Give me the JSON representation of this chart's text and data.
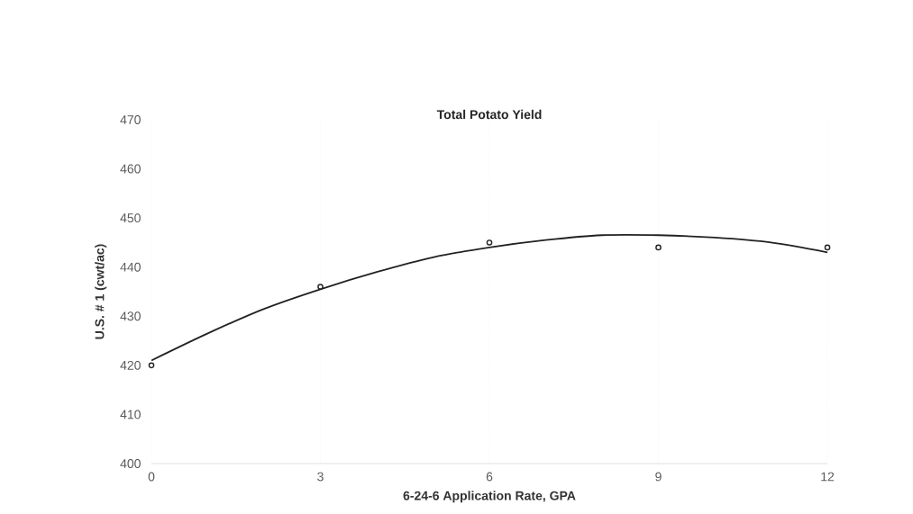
{
  "chart_data": {
    "type": "scatter",
    "title": "**Total Potato Yield**",
    "xlabel": "**6-24-6 Application Rate, GPA**",
    "ylabel": "**U.S. # 1 (cwt/ac)**",
    "x": [
      0,
      3,
      6,
      9,
      12
    ],
    "series": [
      {
        "color": "#222222",
        "marker": "circle",
        "values": [
          420,
          436,
          445,
          444,
          444
        ]
      },
      {
        "type": "line",
        "color": "#222222",
        "line_style": "solid",
        "x": [
          0,
          1,
          2,
          3,
          4,
          5,
          6,
          7,
          8,
          9,
          10,
          11,
          12
        ],
        "values": [
          421,
          426.5,
          431.5,
          435.5,
          439,
          442,
          444,
          445.5,
          446.5,
          446.5,
          446,
          445,
          443
        ]
      }
    ],
    "xlim": [
      0,
      12
    ],
    "ylim": [
      400,
      470
    ],
    "xticks": [
      0,
      3,
      6,
      9,
      12
    ],
    "yticks": [
      400,
      410,
      420,
      430,
      440,
      450,
      460,
      470
    ],
    "grid": "x"
  }
}
